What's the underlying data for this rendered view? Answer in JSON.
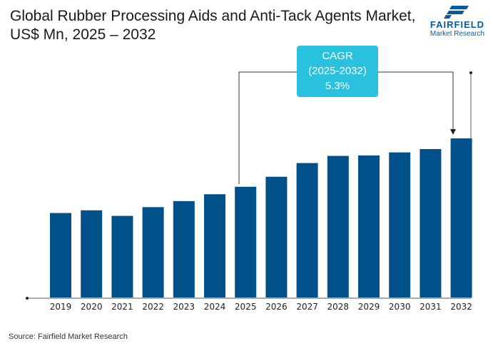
{
  "title": "Global Rubber Processing Aids and Anti-Tack Agents Market, US$ Mn, 2025 – 2032",
  "logo": {
    "brand": "FAIRFIELD",
    "sub": "Market Research"
  },
  "source": "Source: Fairfield Market Research",
  "annotation": {
    "line1": "CAGR",
    "line2": "(2025-2032)",
    "line3": "5.3%"
  },
  "colors": {
    "bar": "#00508a",
    "cagr_box": "#29c1dd",
    "logo": "#0a5a9c"
  },
  "chart_data": {
    "type": "bar",
    "title": "Global Rubber Processing Aids and Anti-Tack Agents Market, US$ Mn, 2025 – 2032",
    "categories": [
      "2019",
      "2020",
      "2021",
      "2022",
      "2023",
      "2024",
      "2025",
      "2026",
      "2027",
      "2028",
      "2029",
      "2030",
      "2031",
      "2032"
    ],
    "values": [
      53.1,
      54.8,
      51.3,
      56.8,
      60.6,
      64.9,
      69.6,
      75.9,
      84.5,
      89.0,
      89.3,
      91.2,
      93.3,
      100
    ],
    "value_note_unit": "relative (2032 = 100); no y-axis values printed",
    "xlabel": "",
    "ylabel": "",
    "grid": false,
    "legend": "none"
  }
}
